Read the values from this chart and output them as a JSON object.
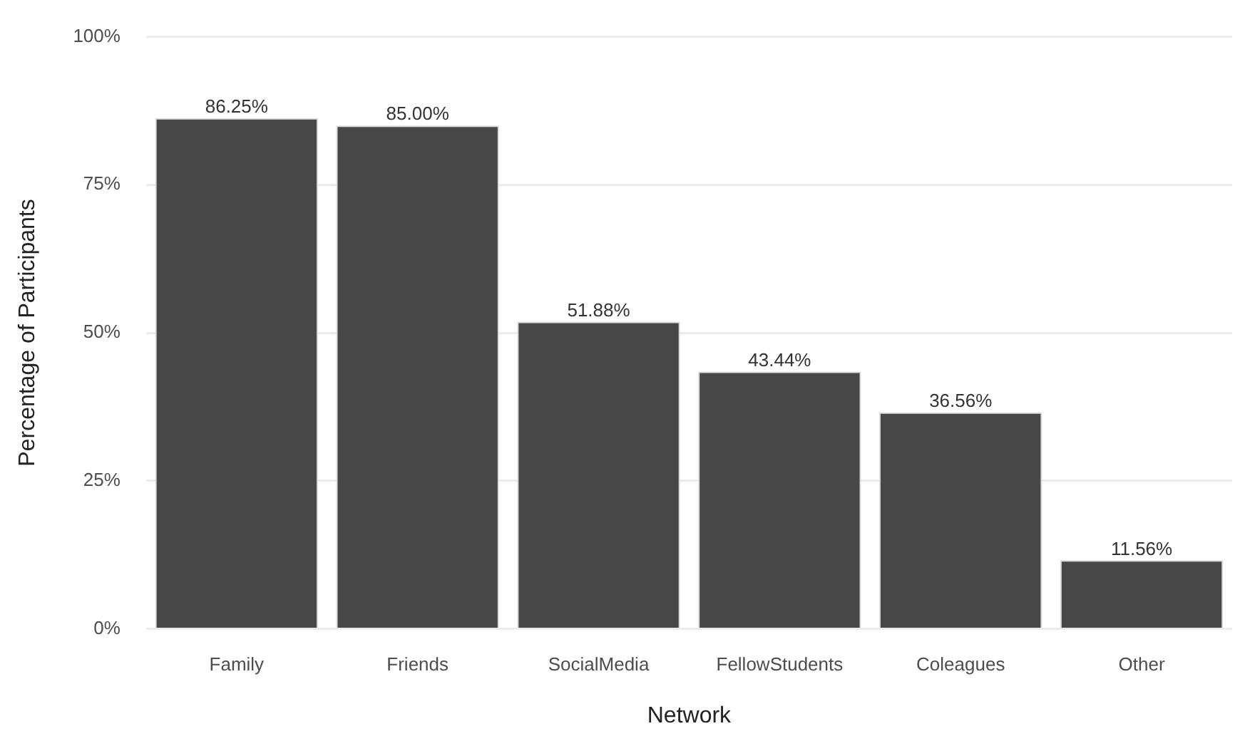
{
  "chart_data": {
    "type": "bar",
    "xlabel": "Network",
    "ylabel": "Percentage of Participants",
    "categories": [
      "Family",
      "Friends",
      "SocialMedia",
      "FellowStudents",
      "Coleagues",
      "Other"
    ],
    "values": [
      86.25,
      85.0,
      51.88,
      43.44,
      36.56,
      11.56
    ],
    "value_labels": [
      "86.25%",
      "85.00%",
      "51.88%",
      "43.44%",
      "36.56%",
      "11.56%"
    ],
    "color": "#474747",
    "ylim": [
      0,
      100
    ],
    "yticks": [
      {
        "value": 0,
        "label": "0%"
      },
      {
        "value": 25,
        "label": "25%"
      },
      {
        "value": 50,
        "label": "50%"
      },
      {
        "value": 75,
        "label": "75%"
      },
      {
        "value": 100,
        "label": "100%"
      }
    ],
    "grid": "y",
    "legend": false
  }
}
